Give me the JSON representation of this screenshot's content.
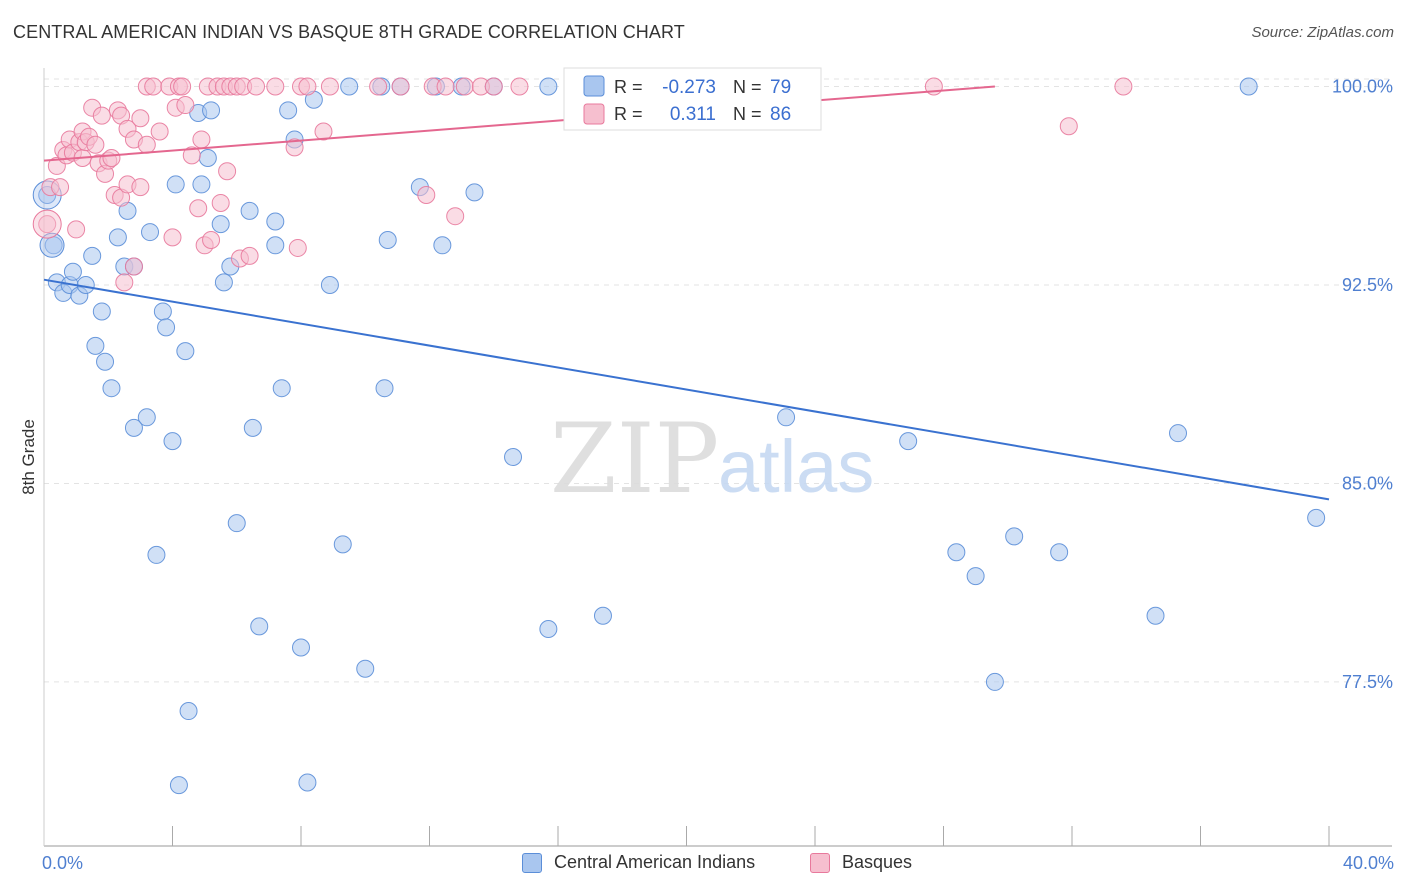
{
  "title": "CENTRAL AMERICAN INDIAN VS BASQUE 8TH GRADE CORRELATION CHART",
  "source": "Source: ZipAtlas.com",
  "watermark": {
    "zip": "ZIP",
    "atlas": "atlas"
  },
  "chart_data": {
    "type": "scatter",
    "ylabel": "8th Grade",
    "xlim": [
      0,
      40
    ],
    "ylim": [
      71.3,
      100.7
    ],
    "x_tick_labels": {
      "min": "0.0%",
      "max": "40.0%"
    },
    "y_ticks": [
      {
        "value": 77.5,
        "label": "77.5%"
      },
      {
        "value": 85.0,
        "label": "85.0%"
      },
      {
        "value": 92.5,
        "label": "92.5%"
      },
      {
        "value": 100.0,
        "label": "100.0%"
      }
    ],
    "x_minor_ticks": [
      4,
      8,
      12,
      16,
      20,
      24,
      28,
      32,
      36,
      40
    ],
    "grid": "horizontal-dashed",
    "legend_position": "top-center",
    "stats": [
      {
        "r_label": "R =",
        "r_value": "-0.273",
        "n_label": "N =",
        "n_value": "79"
      },
      {
        "r_label": "R =",
        "r_value": "0.311",
        "n_label": "N =",
        "n_value": "86"
      }
    ],
    "series": [
      {
        "name": "Central American Indians",
        "color": "#5b8ed8",
        "fill": "#a9c6ef",
        "trend": {
          "x": [
            0,
            40
          ],
          "y": [
            92.7,
            84.4
          ]
        },
        "points": [
          [
            0.1,
            95.9
          ],
          [
            0.3,
            94.0
          ],
          [
            0.4,
            92.6
          ],
          [
            0.6,
            92.2
          ],
          [
            0.8,
            92.5
          ],
          [
            0.9,
            93.0
          ],
          [
            1.1,
            92.1
          ],
          [
            1.3,
            92.5
          ],
          [
            1.5,
            93.6
          ],
          [
            1.6,
            90.2
          ],
          [
            1.8,
            91.5
          ],
          [
            1.9,
            89.6
          ],
          [
            2.1,
            88.6
          ],
          [
            2.3,
            94.3
          ],
          [
            2.5,
            93.2
          ],
          [
            2.6,
            95.3
          ],
          [
            2.8,
            93.2
          ],
          [
            2.8,
            87.1
          ],
          [
            3.2,
            87.5
          ],
          [
            3.3,
            94.5
          ],
          [
            3.5,
            82.3
          ],
          [
            3.7,
            91.5
          ],
          [
            3.8,
            90.9
          ],
          [
            4.0,
            86.6
          ],
          [
            4.1,
            96.3
          ],
          [
            4.2,
            73.6
          ],
          [
            4.4,
            90.0
          ],
          [
            4.5,
            76.4
          ],
          [
            4.8,
            99.0
          ],
          [
            4.9,
            96.3
          ],
          [
            5.1,
            97.3
          ],
          [
            5.2,
            99.1
          ],
          [
            5.5,
            94.8
          ],
          [
            5.6,
            92.6
          ],
          [
            5.8,
            93.2
          ],
          [
            6.0,
            83.5
          ],
          [
            6.4,
            95.3
          ],
          [
            6.5,
            87.1
          ],
          [
            6.7,
            79.6
          ],
          [
            7.2,
            94.9
          ],
          [
            7.2,
            94.0
          ],
          [
            7.4,
            88.6
          ],
          [
            7.6,
            99.1
          ],
          [
            7.8,
            98.0
          ],
          [
            8.0,
            78.8
          ],
          [
            8.2,
            73.7
          ],
          [
            8.4,
            99.5
          ],
          [
            8.9,
            92.5
          ],
          [
            9.3,
            82.7
          ],
          [
            9.5,
            100.0
          ],
          [
            10.0,
            78.0
          ],
          [
            10.5,
            100.0
          ],
          [
            10.6,
            88.6
          ],
          [
            10.7,
            94.2
          ],
          [
            11.1,
            100.0
          ],
          [
            11.7,
            96.2
          ],
          [
            12.2,
            100.0
          ],
          [
            12.4,
            94.0
          ],
          [
            13.0,
            100.0
          ],
          [
            13.4,
            96.0
          ],
          [
            14.0,
            100.0
          ],
          [
            14.6,
            86.0
          ],
          [
            15.7,
            79.5
          ],
          [
            15.7,
            100.0
          ],
          [
            16.8,
            100.0
          ],
          [
            17.4,
            80.0
          ],
          [
            18.0,
            100.0
          ],
          [
            20.0,
            100.0
          ],
          [
            23.1,
            87.5
          ],
          [
            26.9,
            86.6
          ],
          [
            28.4,
            82.4
          ],
          [
            29.0,
            81.5
          ],
          [
            29.6,
            77.5
          ],
          [
            30.2,
            83.0
          ],
          [
            31.6,
            82.4
          ],
          [
            34.6,
            80.0
          ],
          [
            35.3,
            86.9
          ],
          [
            37.5,
            100.0
          ],
          [
            39.6,
            83.7
          ]
        ]
      },
      {
        "name": "Basques",
        "color": "#e8799c",
        "fill": "#f6bfcf",
        "trend": {
          "x": [
            0,
            29.6
          ],
          "y": [
            97.2,
            100.0
          ]
        },
        "points": [
          [
            0.1,
            94.8
          ],
          [
            0.2,
            96.2
          ],
          [
            0.4,
            97.0
          ],
          [
            0.5,
            96.2
          ],
          [
            0.6,
            97.6
          ],
          [
            0.7,
            97.4
          ],
          [
            0.8,
            98.0
          ],
          [
            0.9,
            97.5
          ],
          [
            1.0,
            94.6
          ],
          [
            1.1,
            97.9
          ],
          [
            1.2,
            97.3
          ],
          [
            1.2,
            98.3
          ],
          [
            1.3,
            97.9
          ],
          [
            1.4,
            98.1
          ],
          [
            1.5,
            99.2
          ],
          [
            1.6,
            97.8
          ],
          [
            1.7,
            97.1
          ],
          [
            1.8,
            98.9
          ],
          [
            1.9,
            96.7
          ],
          [
            2.0,
            97.2
          ],
          [
            2.1,
            97.3
          ],
          [
            2.2,
            95.9
          ],
          [
            2.3,
            99.1
          ],
          [
            2.4,
            98.9
          ],
          [
            2.4,
            95.8
          ],
          [
            2.5,
            92.6
          ],
          [
            2.6,
            96.3
          ],
          [
            2.6,
            98.4
          ],
          [
            2.8,
            98.0
          ],
          [
            2.8,
            93.2
          ],
          [
            3.0,
            96.2
          ],
          [
            3.0,
            98.8
          ],
          [
            3.2,
            97.8
          ],
          [
            3.2,
            100.0
          ],
          [
            3.4,
            100.0
          ],
          [
            3.6,
            98.3
          ],
          [
            3.9,
            100.0
          ],
          [
            4.0,
            94.3
          ],
          [
            4.1,
            99.2
          ],
          [
            4.2,
            100.0
          ],
          [
            4.3,
            100.0
          ],
          [
            4.4,
            99.3
          ],
          [
            4.6,
            97.4
          ],
          [
            4.8,
            95.4
          ],
          [
            4.9,
            98.0
          ],
          [
            5.0,
            94.0
          ],
          [
            5.1,
            100.0
          ],
          [
            5.2,
            94.2
          ],
          [
            5.4,
            100.0
          ],
          [
            5.5,
            95.6
          ],
          [
            5.6,
            100.0
          ],
          [
            5.7,
            96.8
          ],
          [
            5.8,
            100.0
          ],
          [
            6.0,
            100.0
          ],
          [
            6.1,
            93.5
          ],
          [
            6.2,
            100.0
          ],
          [
            6.4,
            93.6
          ],
          [
            6.6,
            100.0
          ],
          [
            7.2,
            100.0
          ],
          [
            7.8,
            97.7
          ],
          [
            7.9,
            93.9
          ],
          [
            8.0,
            100.0
          ],
          [
            8.2,
            100.0
          ],
          [
            8.7,
            98.3
          ],
          [
            8.9,
            100.0
          ],
          [
            10.4,
            100.0
          ],
          [
            11.1,
            100.0
          ],
          [
            11.9,
            95.9
          ],
          [
            12.1,
            100.0
          ],
          [
            12.5,
            100.0
          ],
          [
            12.8,
            95.1
          ],
          [
            13.1,
            100.0
          ],
          [
            13.6,
            100.0
          ],
          [
            14.0,
            100.0
          ],
          [
            14.8,
            100.0
          ],
          [
            16.9,
            100.0
          ],
          [
            19.0,
            100.0
          ],
          [
            19.5,
            100.0
          ],
          [
            19.9,
            100.0
          ],
          [
            20.6,
            100.0
          ],
          [
            21.1,
            100.0
          ],
          [
            21.4,
            100.0
          ],
          [
            22.7,
            100.0
          ],
          [
            27.7,
            100.0
          ],
          [
            31.9,
            98.5
          ],
          [
            33.6,
            100.0
          ]
        ]
      }
    ]
  }
}
